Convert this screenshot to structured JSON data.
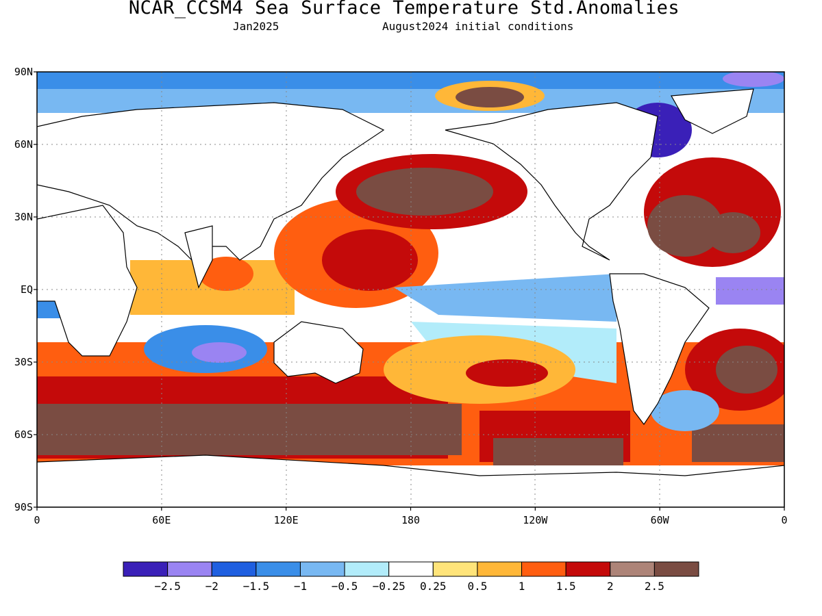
{
  "title": "NCAR_CCSM4 Sea Surface Temperature Std.Anomalies",
  "target_month": "Jan2025",
  "init_conditions": "August2024 initial conditions",
  "map": {
    "lat_ticks": [
      "90N",
      "60N",
      "30N",
      "EQ",
      "30S",
      "60S",
      "90S"
    ],
    "lon_ticks": [
      "0",
      "60E",
      "120E",
      "180",
      "120W",
      "60W",
      "0"
    ]
  },
  "colorbar": {
    "colors": [
      "#3a20b8",
      "#9a84f2",
      "#1f5fe0",
      "#3a8ee8",
      "#78b8f2",
      "#b2ecfa",
      "#ffffff",
      "#ffe47a",
      "#ffb738",
      "#ff5e10",
      "#c40a0a",
      "#ad8478",
      "#7a4c42"
    ],
    "labels": [
      "-2.5",
      "-2",
      "-1.5",
      "-1",
      "-0.5",
      "-0.25",
      "0.25",
      "0.5",
      "1",
      "1.5",
      "2",
      "2.5"
    ]
  }
}
